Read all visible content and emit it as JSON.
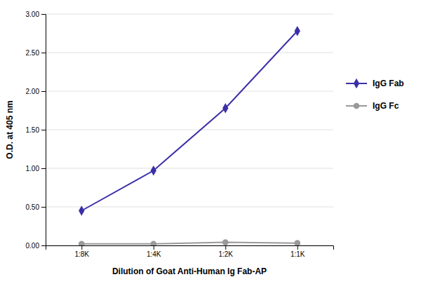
{
  "chart_data": {
    "type": "line",
    "xlabel": "Dilution of Goat Anti-Human Ig Fab-AP",
    "ylabel": "O.D. at 405 nm",
    "categories": [
      "1:8K",
      "1:4K",
      "1:2K",
      "1:1K"
    ],
    "series": [
      {
        "name": "IgG Fab",
        "color": "#3b2fa8",
        "marker": "diamond",
        "values": [
          0.45,
          0.97,
          1.78,
          2.78
        ]
      },
      {
        "name": "IgG Fc",
        "color": "#999999",
        "marker": "circle",
        "values": [
          0.02,
          0.02,
          0.04,
          0.03
        ]
      }
    ],
    "ylim": [
      0.0,
      3.0
    ],
    "yticks": [
      {
        "value": 0.0,
        "label": "0.00"
      },
      {
        "value": 0.5,
        "label": "0.50"
      },
      {
        "value": 1.0,
        "label": "1.00"
      },
      {
        "value": 1.5,
        "label": "1.50"
      },
      {
        "value": 2.0,
        "label": "2.00"
      },
      {
        "value": 2.5,
        "label": "2.50"
      },
      {
        "value": 3.0,
        "label": "3.00"
      }
    ],
    "grid": true,
    "legend": "right"
  }
}
